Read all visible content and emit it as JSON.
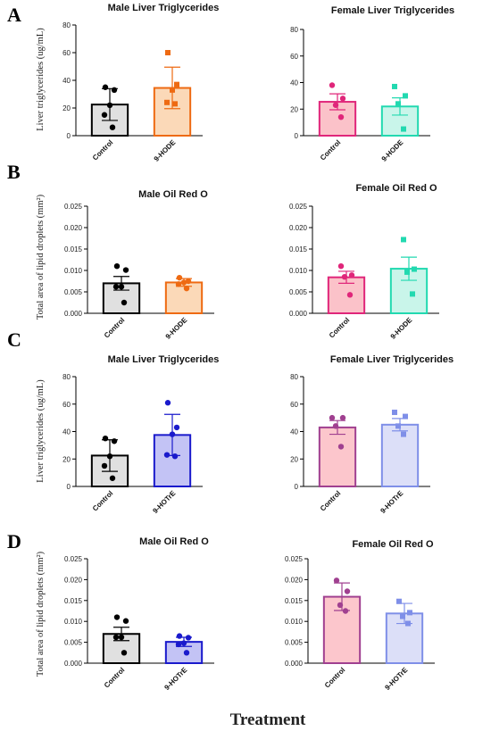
{
  "figure": {
    "x_axis_label": "Treatment",
    "row_letters": [
      "A",
      "B",
      "C",
      "D"
    ],
    "row_ylabels": [
      "Liver triglycerides (ug/mL)",
      "Total area of lipid droplets (mm²)",
      "Liver triglycerides (ug/mL)",
      "Total area of lipid droplets (mm²)"
    ]
  },
  "colors": {
    "control_fill": "#e0e0e0",
    "control_edge": "#000000",
    "hode_fill": "#fbd9b8",
    "hode_edge": "#ee6a12",
    "female_control_fill": "#fbc2c9",
    "female_control_edge": "#e0267a",
    "female_hode_fill": "#c9f5ea",
    "female_hode_edge": "#22d9b0",
    "hotre_fill": "#c3c3f5",
    "hotre_edge": "#1a1acc",
    "female_hotre_ctrl_fill": "#fcc6cc",
    "female_hotre_ctrl_edge": "#a04090",
    "female_hotre_fill": "#dcdff8",
    "female_hotre_edge": "#7f8fe8"
  },
  "chart_data": [
    {
      "type": "bar",
      "title": "Male Liver Triglycerides",
      "categories": [
        "Control",
        "9-HODE"
      ],
      "values": [
        22.5,
        34.5
      ],
      "errors": [
        11.5,
        15
      ],
      "ylim": [
        0,
        80
      ],
      "yticks": [
        "0",
        "20",
        "40",
        "60",
        "80"
      ],
      "points": [
        [
          35,
          33,
          22,
          15,
          6
        ],
        [
          60,
          37,
          33,
          24,
          23
        ]
      ],
      "markers": [
        "circle",
        "square"
      ],
      "fills": [
        "#e0e0e0",
        "#fbd9b8"
      ],
      "edges": [
        "#000000",
        "#ee6a12"
      ],
      "show_y_tick_labels": true
    },
    {
      "type": "bar",
      "title": "Female Liver Triglycerides",
      "categories": [
        "Control",
        "9-HODE"
      ],
      "values": [
        25.5,
        22
      ],
      "errors": [
        6,
        6.5
      ],
      "ylim": [
        0,
        80
      ],
      "yticks": [
        "0",
        "20",
        "40",
        "60",
        "80"
      ],
      "points": [
        [
          38,
          28,
          23,
          14
        ],
        [
          37,
          30,
          24,
          5
        ]
      ],
      "markers": [
        "circle",
        "square"
      ],
      "fills": [
        "#fbc2c9",
        "#c9f5ea"
      ],
      "edges": [
        "#e0267a",
        "#22d9b0"
      ],
      "show_y_tick_labels": true
    },
    {
      "type": "bar",
      "title": "Male Oil Red O",
      "categories": [
        "Control",
        "9-HODE"
      ],
      "values": [
        0.007,
        0.0072
      ],
      "errors": [
        0.0016,
        0.0009
      ],
      "ylim": [
        0,
        0.025
      ],
      "yticks": [
        "0.000",
        "0.005",
        "0.010",
        "0.015",
        "0.020",
        "0.025"
      ],
      "points": [
        [
          0.011,
          0.0101,
          0.0062,
          0.0062,
          0.0025
        ],
        [
          0.0083,
          0.0075,
          0.0072,
          0.0068,
          0.0058
        ]
      ],
      "markers": [
        "circle",
        "circle"
      ],
      "fills": [
        "#e0e0e0",
        "#fbd9b8"
      ],
      "edges": [
        "#000000",
        "#ee6a12"
      ],
      "show_y_tick_labels": true
    },
    {
      "type": "bar",
      "title": "Female Oil Red O",
      "categories": [
        "Control",
        "9-HODE"
      ],
      "values": [
        0.0084,
        0.0104
      ],
      "errors": [
        0.0014,
        0.0027
      ],
      "ylim": [
        0,
        0.025
      ],
      "yticks": [
        "0.000",
        "0.005",
        "0.010",
        "0.015",
        "0.020",
        "0.025"
      ],
      "points": [
        [
          0.011,
          0.0089,
          0.0085,
          0.0043
        ],
        [
          0.0172,
          0.0103,
          0.0096,
          0.0045
        ]
      ],
      "markers": [
        "circle",
        "square"
      ],
      "fills": [
        "#fbc2c9",
        "#c9f5ea"
      ],
      "edges": [
        "#e0267a",
        "#22d9b0"
      ],
      "show_y_tick_labels": true
    },
    {
      "type": "bar",
      "title": "Male Liver Triglycerides",
      "categories": [
        "Control",
        "9-HOTrE"
      ],
      "values": [
        22.5,
        37.5
      ],
      "errors": [
        11.5,
        15
      ],
      "ylim": [
        0,
        80
      ],
      "yticks": [
        "0",
        "20",
        "40",
        "60",
        "80"
      ],
      "points": [
        [
          35,
          33,
          22,
          15,
          6
        ],
        [
          61,
          43,
          38,
          23,
          22
        ]
      ],
      "markers": [
        "circle",
        "circle"
      ],
      "fills": [
        "#e0e0e0",
        "#c3c3f5"
      ],
      "edges": [
        "#000000",
        "#1a1acc"
      ],
      "show_y_tick_labels": true
    },
    {
      "type": "bar",
      "title": "Female Liver Triglycerides",
      "categories": [
        "Control",
        "9-HOTrE"
      ],
      "values": [
        43,
        45
      ],
      "errors": [
        5,
        4.5
      ],
      "ylim": [
        0,
        80
      ],
      "yticks": [
        "0",
        "20",
        "40",
        "60",
        "80"
      ],
      "points": [
        [
          50,
          50,
          44,
          29
        ],
        [
          54,
          51,
          44,
          38
        ]
      ],
      "markers": [
        "circle",
        "square"
      ],
      "fills": [
        "#fcc6cc",
        "#dcdff8"
      ],
      "edges": [
        "#a04090",
        "#7f8fe8"
      ],
      "show_y_tick_labels": true
    },
    {
      "type": "bar",
      "title": "Male Oil Red O",
      "categories": [
        "Control",
        "9-HOTrE"
      ],
      "values": [
        0.007,
        0.0051
      ],
      "errors": [
        0.0016,
        0.0011
      ],
      "ylim": [
        0,
        0.025
      ],
      "yticks": [
        "0.000",
        "0.005",
        "0.010",
        "0.015",
        "0.020",
        "0.025"
      ],
      "points": [
        [
          0.011,
          0.0101,
          0.0062,
          0.0062,
          0.0025
        ],
        [
          0.0065,
          0.0061,
          0.0048,
          0.0045,
          0.0025
        ]
      ],
      "markers": [
        "circle",
        "circle"
      ],
      "fills": [
        "#e0e0e0",
        "#c3c3f5"
      ],
      "edges": [
        "#000000",
        "#1a1acc"
      ],
      "show_y_tick_labels": true
    },
    {
      "type": "bar",
      "title": "Female Oil Red O",
      "categories": [
        "Control",
        "9-HOTrE"
      ],
      "values": [
        0.0159,
        0.0119
      ],
      "errors": [
        0.0033,
        0.0024
      ],
      "ylim": [
        0,
        0.025
      ],
      "yticks": [
        "0.000",
        "0.005",
        "0.010",
        "0.015",
        "0.020",
        "0.025"
      ],
      "points": [
        [
          0.0198,
          0.0172,
          0.0139,
          0.0125
        ],
        [
          0.0148,
          0.0121,
          0.0112,
          0.0095
        ]
      ],
      "markers": [
        "circle",
        "square"
      ],
      "fills": [
        "#fcc6cc",
        "#dcdff8"
      ],
      "edges": [
        "#a04090",
        "#7f8fe8"
      ],
      "show_y_tick_labels": true
    }
  ]
}
